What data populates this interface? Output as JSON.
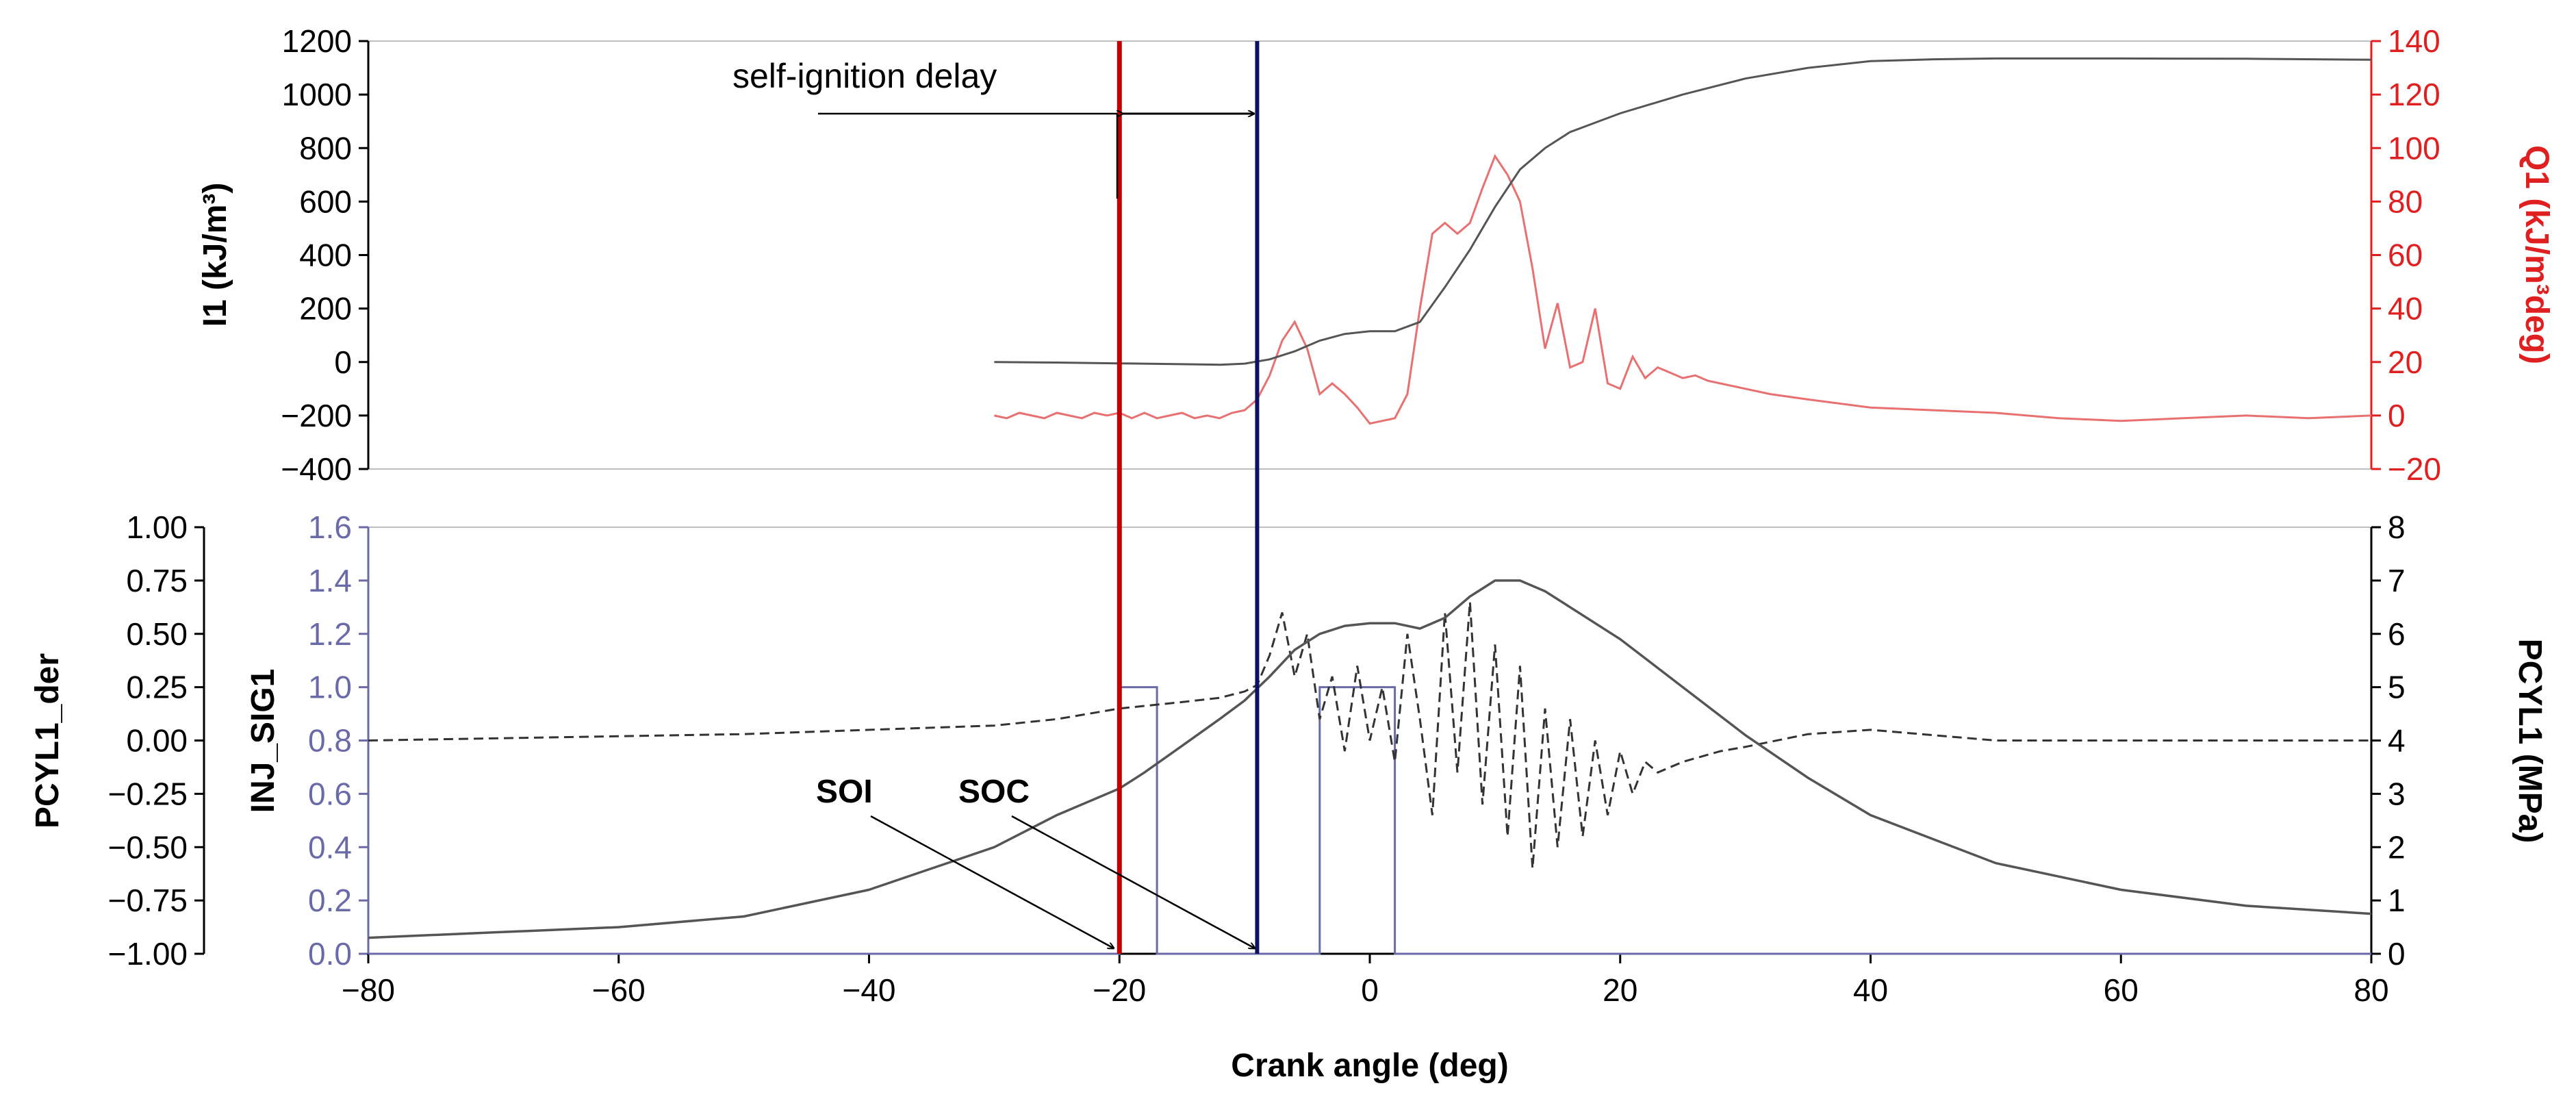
{
  "chart_data": {
    "type": "line",
    "x": {
      "label": "Crank angle (deg)",
      "range": [
        -80,
        80
      ],
      "ticks": [
        -80,
        -60,
        -40,
        -20,
        0,
        20,
        40,
        60,
        80
      ],
      "tick_labels": [
        "−80",
        "−60",
        "−40",
        "−20",
        "0",
        "20",
        "40",
        "60",
        "80"
      ]
    },
    "top_panel": {
      "left_axis": {
        "label": "I1 (kJ/m³)",
        "range": [
          -400,
          1200
        ],
        "ticks": [
          -400,
          -200,
          0,
          200,
          400,
          600,
          800,
          1000,
          1200
        ],
        "tick_labels": [
          "−400",
          "−200",
          "0",
          "200",
          "400",
          "600",
          "800",
          "1000",
          "1200"
        ],
        "color": "#000000"
      },
      "right_axis": {
        "label": "Q1 (kJ/m³deg)",
        "range": [
          -20,
          140
        ],
        "ticks": [
          -20,
          0,
          20,
          40,
          60,
          80,
          100,
          120,
          140
        ],
        "tick_labels": [
          "−20",
          "0",
          "20",
          "40",
          "60",
          "80",
          "100",
          "120",
          "140"
        ],
        "color": "#e02020"
      },
      "series": [
        {
          "name": "I1",
          "axis": "left",
          "color": "#555555",
          "style": "solid",
          "points": [
            [
              -30,
              0
            ],
            [
              -25,
              -2
            ],
            [
              -20,
              -5
            ],
            [
              -15,
              -8
            ],
            [
              -12,
              -10
            ],
            [
              -10,
              -6
            ],
            [
              -8,
              10
            ],
            [
              -6,
              40
            ],
            [
              -4,
              80
            ],
            [
              -2,
              105
            ],
            [
              0,
              115
            ],
            [
              2,
              115
            ],
            [
              4,
              150
            ],
            [
              6,
              280
            ],
            [
              8,
              420
            ],
            [
              10,
              580
            ],
            [
              12,
              720
            ],
            [
              14,
              800
            ],
            [
              16,
              860
            ],
            [
              20,
              930
            ],
            [
              25,
              1000
            ],
            [
              30,
              1060
            ],
            [
              35,
              1100
            ],
            [
              40,
              1125
            ],
            [
              45,
              1132
            ],
            [
              50,
              1135
            ],
            [
              55,
              1135
            ],
            [
              60,
              1135
            ],
            [
              70,
              1134
            ],
            [
              80,
              1130
            ]
          ]
        },
        {
          "name": "Q1",
          "axis": "right",
          "color": "#e87070",
          "style": "solid",
          "points": [
            [
              -30,
              0
            ],
            [
              -29,
              -1
            ],
            [
              -28,
              1
            ],
            [
              -27,
              0
            ],
            [
              -26,
              -1
            ],
            [
              -25,
              1
            ],
            [
              -24,
              0
            ],
            [
              -23,
              -1
            ],
            [
              -22,
              1
            ],
            [
              -21,
              0
            ],
            [
              -20,
              1
            ],
            [
              -19,
              -1
            ],
            [
              -18,
              1
            ],
            [
              -17,
              -1
            ],
            [
              -16,
              0
            ],
            [
              -15,
              1
            ],
            [
              -14,
              -1
            ],
            [
              -13,
              0
            ],
            [
              -12,
              -1
            ],
            [
              -11,
              1
            ],
            [
              -10,
              2
            ],
            [
              -9,
              6
            ],
            [
              -8,
              15
            ],
            [
              -7,
              28
            ],
            [
              -6,
              35
            ],
            [
              -5,
              25
            ],
            [
              -4,
              8
            ],
            [
              -3,
              12
            ],
            [
              -2,
              8
            ],
            [
              -1,
              3
            ],
            [
              0,
              -3
            ],
            [
              1,
              -2
            ],
            [
              2,
              -1
            ],
            [
              3,
              8
            ],
            [
              4,
              40
            ],
            [
              5,
              68
            ],
            [
              6,
              72
            ],
            [
              7,
              68
            ],
            [
              8,
              72
            ],
            [
              9,
              85
            ],
            [
              10,
              97
            ],
            [
              11,
              90
            ],
            [
              12,
              80
            ],
            [
              13,
              55
            ],
            [
              14,
              25
            ],
            [
              15,
              42
            ],
            [
              16,
              18
            ],
            [
              17,
              20
            ],
            [
              18,
              40
            ],
            [
              19,
              12
            ],
            [
              20,
              10
            ],
            [
              21,
              22
            ],
            [
              22,
              14
            ],
            [
              23,
              18
            ],
            [
              24,
              16
            ],
            [
              25,
              14
            ],
            [
              26,
              15
            ],
            [
              27,
              13
            ],
            [
              28,
              12
            ],
            [
              30,
              10
            ],
            [
              32,
              8
            ],
            [
              35,
              6
            ],
            [
              40,
              3
            ],
            [
              45,
              2
            ],
            [
              50,
              1
            ],
            [
              55,
              -1
            ],
            [
              60,
              -2
            ],
            [
              65,
              -1
            ],
            [
              70,
              0
            ],
            [
              75,
              -1
            ],
            [
              80,
              0
            ]
          ]
        }
      ],
      "annotation": "self-ignition delay"
    },
    "bottom_panel": {
      "left_axis_outer": {
        "label": "PCYL1_der",
        "range": [
          -1.0,
          1.0
        ],
        "ticks": [
          -1.0,
          -0.75,
          -0.5,
          -0.25,
          0.0,
          0.25,
          0.5,
          0.75,
          1.0
        ],
        "tick_labels": [
          "−1.00",
          "−0.75",
          "−0.50",
          "−0.25",
          "0.00",
          "0.25",
          "0.50",
          "0.75",
          "1.00"
        ],
        "color": "#000000"
      },
      "left_axis_inner": {
        "label": "INJ_SIG1",
        "range": [
          0.0,
          1.6
        ],
        "ticks": [
          0.0,
          0.2,
          0.4,
          0.6,
          0.8,
          1.0,
          1.2,
          1.4,
          1.6
        ],
        "tick_labels": [
          "0.0",
          "0.2",
          "0.4",
          "0.6",
          "0.8",
          "1.0",
          "1.2",
          "1.4",
          "1.6"
        ],
        "color": "#6a6aa8"
      },
      "right_axis": {
        "label": "PCYL1 (MPa)",
        "range": [
          0,
          8
        ],
        "ticks": [
          0,
          1,
          2,
          3,
          4,
          5,
          6,
          7,
          8
        ],
        "tick_labels": [
          "0",
          "1",
          "2",
          "3",
          "4",
          "5",
          "6",
          "7",
          "8"
        ],
        "color": "#000000"
      },
      "series": [
        {
          "name": "PCYL1",
          "axis": "right",
          "color": "#555555",
          "style": "solid",
          "points": [
            [
              -80,
              0.3
            ],
            [
              -70,
              0.4
            ],
            [
              -60,
              0.5
            ],
            [
              -50,
              0.7
            ],
            [
              -40,
              1.2
            ],
            [
              -35,
              1.6
            ],
            [
              -30,
              2.0
            ],
            [
              -25,
              2.6
            ],
            [
              -20,
              3.1
            ],
            [
              -18,
              3.4
            ],
            [
              -15,
              3.9
            ],
            [
              -12,
              4.4
            ],
            [
              -10,
              4.75
            ],
            [
              -8,
              5.2
            ],
            [
              -6,
              5.7
            ],
            [
              -4,
              6.0
            ],
            [
              -2,
              6.15
            ],
            [
              0,
              6.2
            ],
            [
              2,
              6.2
            ],
            [
              4,
              6.1
            ],
            [
              6,
              6.3
            ],
            [
              8,
              6.7
            ],
            [
              10,
              7.0
            ],
            [
              12,
              7.0
            ],
            [
              14,
              6.8
            ],
            [
              16,
              6.5
            ],
            [
              18,
              6.2
            ],
            [
              20,
              5.9
            ],
            [
              25,
              5.0
            ],
            [
              30,
              4.1
            ],
            [
              35,
              3.3
            ],
            [
              40,
              2.6
            ],
            [
              50,
              1.7
            ],
            [
              60,
              1.2
            ],
            [
              70,
              0.9
            ],
            [
              80,
              0.75
            ]
          ]
        },
        {
          "name": "PCYL1_der",
          "axis": "left_outer",
          "color": "#333333",
          "style": "dashed",
          "points": [
            [
              -80,
              0.0
            ],
            [
              -50,
              0.03
            ],
            [
              -30,
              0.07
            ],
            [
              -25,
              0.1
            ],
            [
              -20,
              0.15
            ],
            [
              -15,
              0.18
            ],
            [
              -12,
              0.2
            ],
            [
              -10,
              0.23
            ],
            [
              -9,
              0.26
            ],
            [
              -8,
              0.4
            ],
            [
              -7,
              0.6
            ],
            [
              -6,
              0.3
            ],
            [
              -5,
              0.5
            ],
            [
              -4,
              0.1
            ],
            [
              -3,
              0.3
            ],
            [
              -2,
              -0.05
            ],
            [
              -1,
              0.35
            ],
            [
              0,
              0.0
            ],
            [
              1,
              0.25
            ],
            [
              2,
              -0.1
            ],
            [
              3,
              0.5
            ],
            [
              4,
              0.1
            ],
            [
              5,
              -0.35
            ],
            [
              6,
              0.6
            ],
            [
              7,
              -0.15
            ],
            [
              8,
              0.65
            ],
            [
              9,
              -0.3
            ],
            [
              10,
              0.45
            ],
            [
              11,
              -0.45
            ],
            [
              12,
              0.35
            ],
            [
              13,
              -0.6
            ],
            [
              14,
              0.15
            ],
            [
              15,
              -0.5
            ],
            [
              16,
              0.1
            ],
            [
              17,
              -0.45
            ],
            [
              18,
              0.0
            ],
            [
              19,
              -0.35
            ],
            [
              20,
              -0.05
            ],
            [
              21,
              -0.25
            ],
            [
              22,
              -0.1
            ],
            [
              23,
              -0.15
            ],
            [
              25,
              -0.1
            ],
            [
              28,
              -0.05
            ],
            [
              30,
              -0.03
            ],
            [
              35,
              0.03
            ],
            [
              40,
              0.05
            ],
            [
              50,
              0.0
            ],
            [
              60,
              0.0
            ],
            [
              70,
              0.0
            ],
            [
              80,
              0.0
            ]
          ]
        },
        {
          "name": "INJ_SIG1",
          "axis": "left_inner",
          "color": "#6a6aa8",
          "style": "solid",
          "points": [
            [
              -80,
              0.0
            ],
            [
              -20,
              0.0
            ],
            [
              -20,
              1.0
            ],
            [
              -17,
              1.0
            ],
            [
              -17,
              0.0
            ],
            [
              -4,
              0.0
            ],
            [
              -4,
              1.0
            ],
            [
              2,
              1.0
            ],
            [
              2,
              0.0
            ],
            [
              80,
              0.0
            ]
          ]
        }
      ],
      "annotations": [
        "SOI",
        "SOC"
      ]
    },
    "markers": [
      {
        "name": "SOI",
        "x": -20,
        "color": "#c00000"
      },
      {
        "name": "SOC",
        "x": -9,
        "color": "#101060"
      }
    ]
  }
}
